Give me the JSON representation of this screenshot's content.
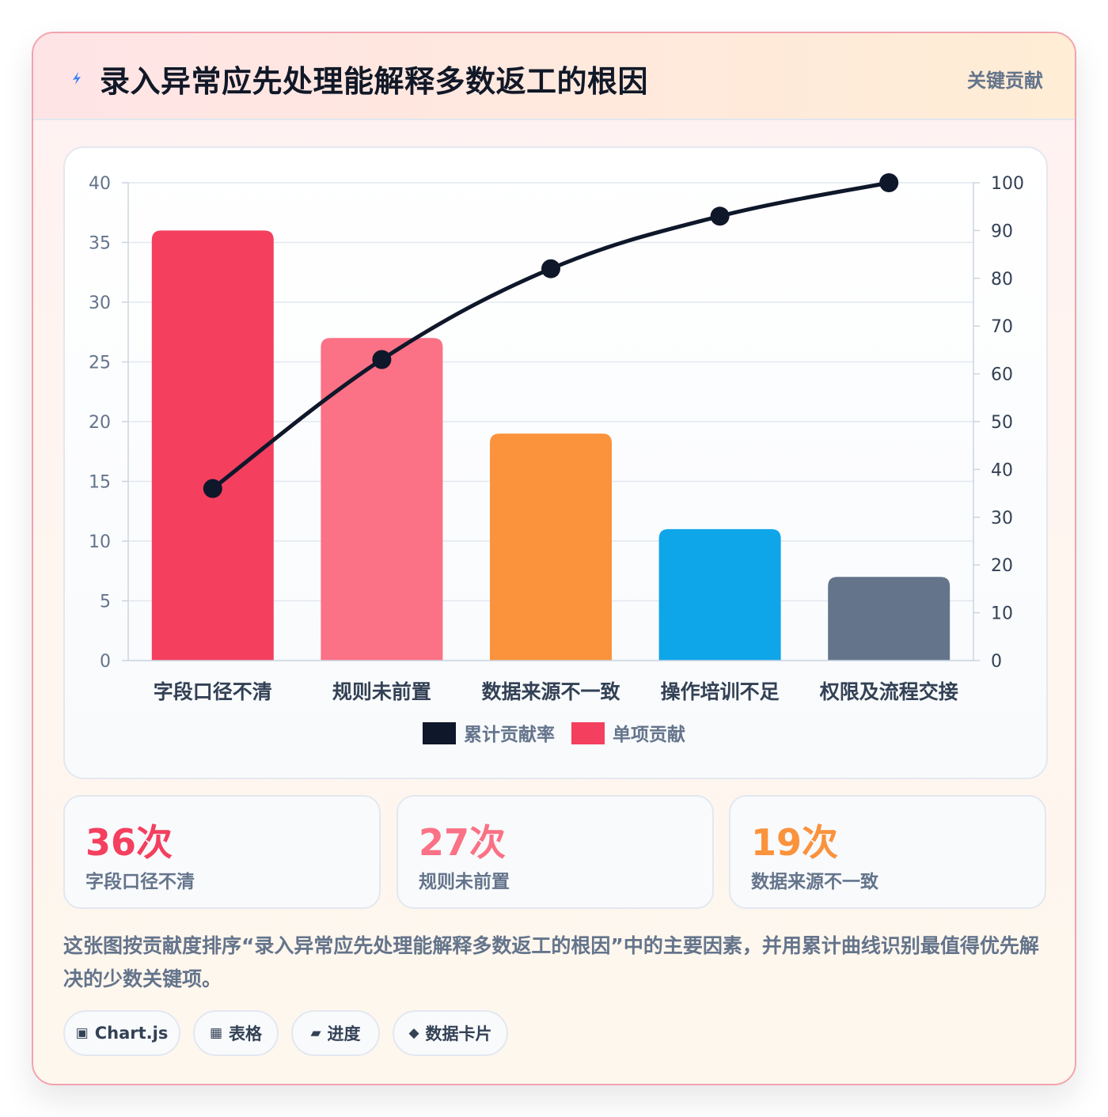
{
  "header": {
    "title": "录入异常应先处理能解释多数返工的根因",
    "tag": "关键贡献",
    "icon": "lightning-icon"
  },
  "chart_data": {
    "type": "bar",
    "categories": [
      "字段口径不清",
      "规则未前置",
      "数据来源不一致",
      "操作培训不足",
      "权限及流程交接"
    ],
    "series": [
      {
        "name": "单项贡献",
        "type": "bar",
        "axis": "left",
        "values": [
          36,
          27,
          19,
          11,
          7
        ],
        "colors": [
          "#f43f5e",
          "#fb7185",
          "#fb923c",
          "#0ea5e9",
          "#64748b"
        ]
      },
      {
        "name": "累计贡献率",
        "type": "line",
        "axis": "right",
        "values": [
          36,
          63,
          82,
          93,
          100
        ],
        "color": "#0f172a"
      }
    ],
    "y_left": {
      "min": 0,
      "max": 40,
      "ticks": [
        0,
        5,
        10,
        15,
        20,
        25,
        30,
        35,
        40
      ]
    },
    "y_right": {
      "min": 0,
      "max": 100,
      "ticks": [
        0,
        10,
        20,
        30,
        40,
        50,
        60,
        70,
        80,
        90,
        100
      ]
    },
    "grid": true,
    "legend": {
      "placement": "bottom",
      "entries": [
        {
          "label": "累计贡献率",
          "color": "#0f172a"
        },
        {
          "label": "单项贡献",
          "color": "#f43f5e"
        }
      ]
    }
  },
  "stats": [
    {
      "value": "36次",
      "label": "字段口径不清",
      "color": "#f43f5e"
    },
    {
      "value": "27次",
      "label": "规则未前置",
      "color": "#fb7185"
    },
    {
      "value": "19次",
      "label": "数据来源不一致",
      "color": "#fb923c"
    }
  ],
  "description": "这张图按贡献度排序“录入异常应先处理能解释多数返工的根因”中的主要因素，并用累计曲线识别最值得优先解决的少数关键项。",
  "tags": [
    {
      "icon": "▣",
      "label": "Chart.js"
    },
    {
      "icon": "▦",
      "label": "表格"
    },
    {
      "icon": "▰",
      "label": "进度"
    },
    {
      "icon": "◆",
      "label": "数据卡片"
    }
  ]
}
